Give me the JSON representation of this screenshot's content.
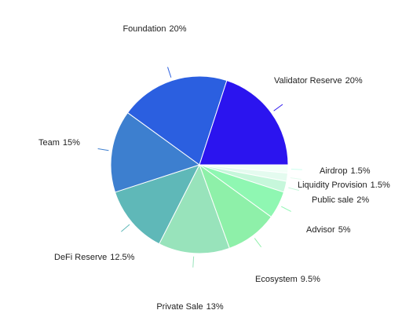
{
  "chart_data": {
    "type": "pie",
    "categories": [
      "Airdrop",
      "Liquidity Provision",
      "Public sale",
      "Advisor",
      "Ecosystem",
      "Private Sale",
      "DeFi Reserve",
      "Team",
      "Foundation",
      "Validator Reserve"
    ],
    "values": [
      1.5,
      1.5,
      2,
      5,
      9.5,
      13,
      12.5,
      15,
      20,
      20
    ],
    "value_labels": [
      "1.5%",
      "1.5%",
      "2%",
      "5%",
      "9.5%",
      "13%",
      "12.5%",
      "15%",
      "20%",
      "20%"
    ],
    "colors": [
      "#f3fff8",
      "#e4fbef",
      "#c6f7db",
      "#8ff7b2",
      "#8ef0a9",
      "#98e3bb",
      "#5fb8b8",
      "#3d7fcf",
      "#2b5fe0",
      "#2b14ef"
    ]
  }
}
